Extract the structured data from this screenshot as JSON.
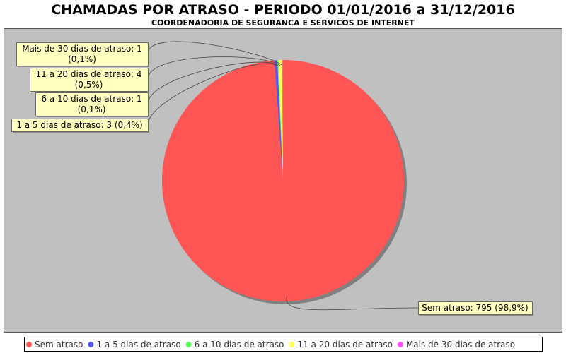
{
  "chart_data": {
    "type": "pie",
    "title": "CHAMADAS POR ATRASO - PERIODO 01/01/2016 a 31/12/2016",
    "subtitle": "COORDENADORIA DE SEGURANCA E SERVICOS DE INTERNET",
    "slices": [
      {
        "name": "Sem atraso",
        "value": 795,
        "percent": "98,9%",
        "color": "#ff5555",
        "label": "Sem atraso: 795 (98,9%)"
      },
      {
        "name": "1 a 5 dias de atraso",
        "value": 3,
        "percent": "0,4%",
        "color": "#5555ff",
        "label": "1 a 5 dias de atraso: 3 (0,4%)"
      },
      {
        "name": "6 a 10 dias de atraso",
        "value": 1,
        "percent": "0,1%",
        "color": "#55ff55",
        "label": "6 a 10 dias de atraso: 1 (0,1%)"
      },
      {
        "name": "11 a 20 dias de atraso",
        "value": 4,
        "percent": "0,5%",
        "color": "#ffff55",
        "label": "11 a 20 dias de atraso: 4 (0,5%)"
      },
      {
        "name": "Mais de 30 dias de atraso",
        "value": 1,
        "percent": "0,1%",
        "color": "#ff55ff",
        "label": "Mais de 30 dias de atraso: 1 (0,1%)"
      }
    ],
    "start_angle": 90,
    "direction": "clockwise",
    "legend_position": "bottom",
    "plot_background": "#c0c0c0"
  }
}
